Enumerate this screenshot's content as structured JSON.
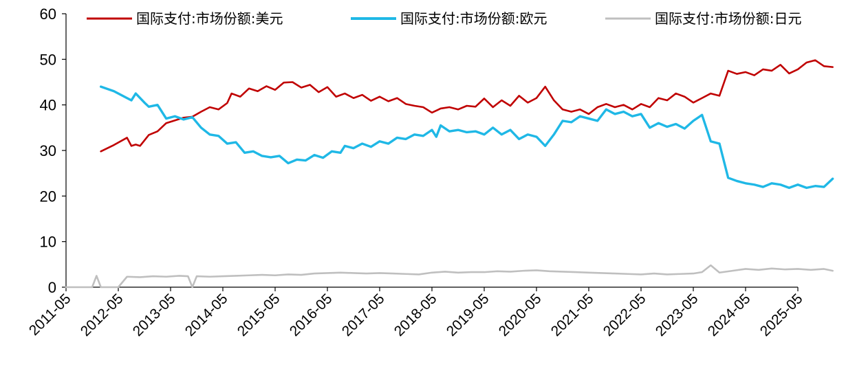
{
  "chart_data": {
    "type": "line",
    "title": "",
    "xlabel": "",
    "ylabel": "",
    "ylim": [
      0,
      60
    ],
    "yticks": [
      0,
      10,
      20,
      30,
      40,
      50,
      60
    ],
    "xlim": [
      "2011-05",
      "2025-05"
    ],
    "xticks": [
      "2011-05",
      "2012-05",
      "2013-05",
      "2014-05",
      "2015-05",
      "2016-05",
      "2017-05",
      "2018-05",
      "2019-05",
      "2020-05",
      "2021-05",
      "2022-05",
      "2023-05",
      "2024-05",
      "2025-05"
    ],
    "grid": false,
    "legend_position": "top",
    "series": [
      {
        "name": "国际支付:市场份额:美元",
        "color": "#c00000",
        "points": [
          [
            "2012-01",
            29.8
          ],
          [
            "2012-04",
            31.2
          ],
          [
            "2012-07",
            32.8
          ],
          [
            "2012-08",
            31.0
          ],
          [
            "2012-09",
            31.3
          ],
          [
            "2012-10",
            31.0
          ],
          [
            "2012-12",
            33.4
          ],
          [
            "2013-02",
            34.2
          ],
          [
            "2013-04",
            36.0
          ],
          [
            "2013-06",
            36.6
          ],
          [
            "2013-08",
            37.2
          ],
          [
            "2013-10",
            37.4
          ],
          [
            "2013-12",
            38.5
          ],
          [
            "2014-02",
            39.5
          ],
          [
            "2014-04",
            39.0
          ],
          [
            "2014-06",
            40.4
          ],
          [
            "2014-07",
            42.5
          ],
          [
            "2014-09",
            41.8
          ],
          [
            "2014-11",
            43.6
          ],
          [
            "2015-01",
            43.0
          ],
          [
            "2015-03",
            44.1
          ],
          [
            "2015-05",
            43.3
          ],
          [
            "2015-07",
            44.9
          ],
          [
            "2015-09",
            45.0
          ],
          [
            "2015-11",
            43.8
          ],
          [
            "2016-01",
            44.4
          ],
          [
            "2016-03",
            42.8
          ],
          [
            "2016-05",
            43.9
          ],
          [
            "2016-07",
            41.8
          ],
          [
            "2016-09",
            42.5
          ],
          [
            "2016-11",
            41.5
          ],
          [
            "2017-01",
            42.2
          ],
          [
            "2017-03",
            40.9
          ],
          [
            "2017-05",
            41.8
          ],
          [
            "2017-07",
            40.8
          ],
          [
            "2017-09",
            41.5
          ],
          [
            "2017-11",
            40.2
          ],
          [
            "2018-01",
            39.8
          ],
          [
            "2018-03",
            39.5
          ],
          [
            "2018-05",
            38.3
          ],
          [
            "2018-07",
            39.2
          ],
          [
            "2018-09",
            39.5
          ],
          [
            "2018-11",
            39.0
          ],
          [
            "2019-01",
            39.8
          ],
          [
            "2019-03",
            39.6
          ],
          [
            "2019-05",
            41.4
          ],
          [
            "2019-07",
            39.5
          ],
          [
            "2019-09",
            41.0
          ],
          [
            "2019-11",
            39.8
          ],
          [
            "2020-01",
            42.0
          ],
          [
            "2020-03",
            40.5
          ],
          [
            "2020-05",
            41.5
          ],
          [
            "2020-07",
            44.0
          ],
          [
            "2020-09",
            41.0
          ],
          [
            "2020-11",
            39.0
          ],
          [
            "2021-01",
            38.5
          ],
          [
            "2021-03",
            39.0
          ],
          [
            "2021-05",
            38.0
          ],
          [
            "2021-07",
            39.5
          ],
          [
            "2021-09",
            40.2
          ],
          [
            "2021-11",
            39.5
          ],
          [
            "2022-01",
            40.0
          ],
          [
            "2022-03",
            39.0
          ],
          [
            "2022-05",
            40.2
          ],
          [
            "2022-07",
            39.5
          ],
          [
            "2022-09",
            41.5
          ],
          [
            "2022-11",
            41.0
          ],
          [
            "2023-01",
            42.5
          ],
          [
            "2023-03",
            41.8
          ],
          [
            "2023-05",
            40.5
          ],
          [
            "2023-07",
            41.5
          ],
          [
            "2023-09",
            42.5
          ],
          [
            "2023-11",
            42.0
          ],
          [
            "2024-01",
            47.5
          ],
          [
            "2024-03",
            46.8
          ],
          [
            "2024-05",
            47.2
          ],
          [
            "2024-07",
            46.5
          ],
          [
            "2024-09",
            47.8
          ],
          [
            "2024-11",
            47.5
          ],
          [
            "2025-01",
            48.8
          ],
          [
            "2025-03",
            46.9
          ],
          [
            "2025-05",
            47.8
          ],
          [
            "2025-07",
            49.3
          ],
          [
            "2025-09",
            49.8
          ],
          [
            "2025-11",
            48.5
          ],
          [
            "2026-01",
            48.3
          ]
        ]
      },
      {
        "name": "国际支付:市场份额:欧元",
        "color": "#1fb8e6",
        "points": [
          [
            "2012-01",
            44.0
          ],
          [
            "2012-04",
            43.0
          ],
          [
            "2012-07",
            41.5
          ],
          [
            "2012-08",
            41.0
          ],
          [
            "2012-09",
            42.5
          ],
          [
            "2012-11",
            40.5
          ],
          [
            "2012-12",
            39.6
          ],
          [
            "2013-02",
            40.0
          ],
          [
            "2013-04",
            37.0
          ],
          [
            "2013-06",
            37.5
          ],
          [
            "2013-08",
            36.8
          ],
          [
            "2013-10",
            37.3
          ],
          [
            "2013-12",
            35.0
          ],
          [
            "2014-02",
            33.5
          ],
          [
            "2014-04",
            33.2
          ],
          [
            "2014-06",
            31.5
          ],
          [
            "2014-08",
            31.8
          ],
          [
            "2014-10",
            29.5
          ],
          [
            "2014-12",
            29.8
          ],
          [
            "2015-02",
            28.8
          ],
          [
            "2015-04",
            28.5
          ],
          [
            "2015-06",
            28.8
          ],
          [
            "2015-08",
            27.2
          ],
          [
            "2015-10",
            28.0
          ],
          [
            "2015-12",
            27.8
          ],
          [
            "2016-02",
            29.0
          ],
          [
            "2016-04",
            28.4
          ],
          [
            "2016-06",
            29.8
          ],
          [
            "2016-08",
            29.5
          ],
          [
            "2016-09",
            31.0
          ],
          [
            "2016-11",
            30.5
          ],
          [
            "2017-01",
            31.5
          ],
          [
            "2017-03",
            30.8
          ],
          [
            "2017-05",
            32.0
          ],
          [
            "2017-07",
            31.5
          ],
          [
            "2017-09",
            32.8
          ],
          [
            "2017-11",
            32.5
          ],
          [
            "2018-01",
            33.5
          ],
          [
            "2018-03",
            33.2
          ],
          [
            "2018-05",
            34.5
          ],
          [
            "2018-06",
            33.0
          ],
          [
            "2018-07",
            35.5
          ],
          [
            "2018-09",
            34.2
          ],
          [
            "2018-11",
            34.5
          ],
          [
            "2019-01",
            34.0
          ],
          [
            "2019-03",
            34.2
          ],
          [
            "2019-05",
            33.5
          ],
          [
            "2019-07",
            35.0
          ],
          [
            "2019-09",
            33.5
          ],
          [
            "2019-11",
            34.5
          ],
          [
            "2020-01",
            32.5
          ],
          [
            "2020-03",
            33.5
          ],
          [
            "2020-05",
            33.0
          ],
          [
            "2020-07",
            31.0
          ],
          [
            "2020-09",
            33.5
          ],
          [
            "2020-11",
            36.5
          ],
          [
            "2021-01",
            36.2
          ],
          [
            "2021-03",
            37.5
          ],
          [
            "2021-05",
            37.0
          ],
          [
            "2021-07",
            36.5
          ],
          [
            "2021-09",
            39.0
          ],
          [
            "2021-11",
            38.0
          ],
          [
            "2022-01",
            38.5
          ],
          [
            "2022-03",
            37.5
          ],
          [
            "2022-05",
            38.0
          ],
          [
            "2022-07",
            35.0
          ],
          [
            "2022-09",
            36.0
          ],
          [
            "2022-11",
            35.2
          ],
          [
            "2023-01",
            35.8
          ],
          [
            "2023-03",
            34.8
          ],
          [
            "2023-05",
            36.5
          ],
          [
            "2023-07",
            37.8
          ],
          [
            "2023-09",
            32.0
          ],
          [
            "2023-11",
            31.5
          ],
          [
            "2024-01",
            24.0
          ],
          [
            "2024-03",
            23.3
          ],
          [
            "2024-05",
            22.8
          ],
          [
            "2024-07",
            22.5
          ],
          [
            "2024-09",
            22.0
          ],
          [
            "2024-11",
            22.8
          ],
          [
            "2025-01",
            22.5
          ],
          [
            "2025-03",
            21.8
          ],
          [
            "2025-05",
            22.5
          ],
          [
            "2025-07",
            21.8
          ],
          [
            "2025-09",
            22.2
          ],
          [
            "2025-11",
            22.0
          ],
          [
            "2026-01",
            23.8
          ]
        ]
      },
      {
        "name": "国际支付:市场份额:日元",
        "color": "#bfbfbf",
        "points": [
          [
            "2011-05",
            0.0
          ],
          [
            "2011-09",
            0.0
          ],
          [
            "2011-11",
            0.0
          ],
          [
            "2011-12",
            2.5
          ],
          [
            "2012-01",
            0.0
          ],
          [
            "2012-05",
            0.0
          ],
          [
            "2012-07",
            2.3
          ],
          [
            "2012-10",
            2.2
          ],
          [
            "2013-01",
            2.4
          ],
          [
            "2013-04",
            2.3
          ],
          [
            "2013-07",
            2.5
          ],
          [
            "2013-09",
            2.4
          ],
          [
            "2013-10",
            0.0
          ],
          [
            "2013-11",
            2.4
          ],
          [
            "2014-02",
            2.3
          ],
          [
            "2014-05",
            2.4
          ],
          [
            "2014-08",
            2.5
          ],
          [
            "2014-11",
            2.6
          ],
          [
            "2015-02",
            2.7
          ],
          [
            "2015-05",
            2.6
          ],
          [
            "2015-08",
            2.8
          ],
          [
            "2015-11",
            2.7
          ],
          [
            "2016-02",
            3.0
          ],
          [
            "2016-05",
            3.1
          ],
          [
            "2016-08",
            3.2
          ],
          [
            "2016-11",
            3.1
          ],
          [
            "2017-02",
            3.0
          ],
          [
            "2017-05",
            3.1
          ],
          [
            "2017-08",
            3.0
          ],
          [
            "2017-11",
            2.9
          ],
          [
            "2018-02",
            2.8
          ],
          [
            "2018-05",
            3.2
          ],
          [
            "2018-08",
            3.4
          ],
          [
            "2018-11",
            3.2
          ],
          [
            "2019-02",
            3.3
          ],
          [
            "2019-05",
            3.3
          ],
          [
            "2019-08",
            3.5
          ],
          [
            "2019-11",
            3.4
          ],
          [
            "2020-02",
            3.6
          ],
          [
            "2020-05",
            3.7
          ],
          [
            "2020-08",
            3.5
          ],
          [
            "2020-11",
            3.4
          ],
          [
            "2021-02",
            3.3
          ],
          [
            "2021-05",
            3.2
          ],
          [
            "2021-08",
            3.1
          ],
          [
            "2021-11",
            3.0
          ],
          [
            "2022-02",
            2.9
          ],
          [
            "2022-05",
            2.8
          ],
          [
            "2022-08",
            3.0
          ],
          [
            "2022-11",
            2.8
          ],
          [
            "2023-02",
            2.9
          ],
          [
            "2023-05",
            3.0
          ],
          [
            "2023-07",
            3.3
          ],
          [
            "2023-09",
            4.8
          ],
          [
            "2023-11",
            3.2
          ],
          [
            "2024-02",
            3.6
          ],
          [
            "2024-05",
            4.0
          ],
          [
            "2024-08",
            3.8
          ],
          [
            "2024-11",
            4.1
          ],
          [
            "2025-02",
            3.9
          ],
          [
            "2025-05",
            4.0
          ],
          [
            "2025-08",
            3.8
          ],
          [
            "2025-11",
            4.0
          ],
          [
            "2026-01",
            3.6
          ]
        ]
      }
    ]
  }
}
